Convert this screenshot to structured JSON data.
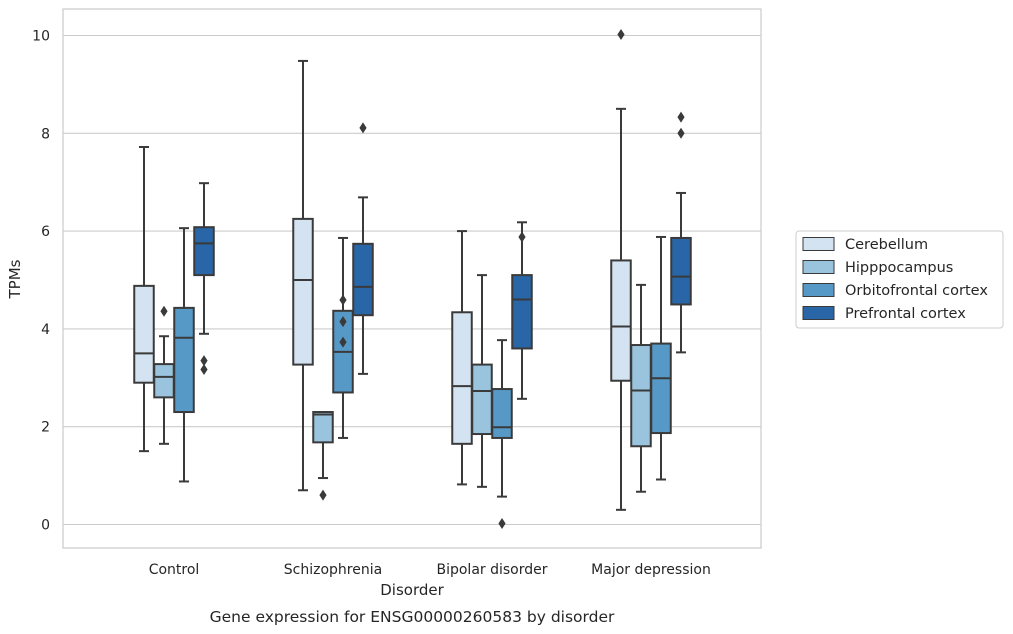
{
  "chart_data": {
    "type": "box",
    "title": "",
    "caption": "Gene expression for ENSG00000260583 by disorder",
    "xlabel": "Disorder",
    "ylabel": "TPMs",
    "ylim": [
      -0.5,
      10.5
    ],
    "yticks": [
      0,
      2,
      4,
      6,
      8,
      10
    ],
    "grid": "horizontal",
    "legend_position": "right",
    "categories": [
      "Control",
      "Schizophrenia",
      "Bipolar disorder",
      "Major depression"
    ],
    "series": [
      {
        "name": "Cerebellum",
        "color": "#d4e3f2",
        "boxes": [
          {
            "whisker_low": 1.5,
            "q1": 2.9,
            "median": 3.5,
            "q3": 4.88,
            "whisker_high": 7.72,
            "outliers": []
          },
          {
            "whisker_low": 0.7,
            "q1": 3.27,
            "median": 5.0,
            "q3": 6.25,
            "whisker_high": 9.48,
            "outliers": []
          },
          {
            "whisker_low": 0.82,
            "q1": 1.65,
            "median": 2.83,
            "q3": 4.34,
            "whisker_high": 6.0,
            "outliers": []
          },
          {
            "whisker_low": 0.3,
            "q1": 2.94,
            "median": 4.05,
            "q3": 5.4,
            "whisker_high": 8.5,
            "outliers": [
              10.02
            ]
          }
        ]
      },
      {
        "name": "Hipppocampus",
        "color": "#9ac4de",
        "boxes": [
          {
            "whisker_low": 1.65,
            "q1": 2.6,
            "median": 3.02,
            "q3": 3.28,
            "whisker_high": 3.85,
            "outliers": [
              4.36
            ]
          },
          {
            "whisker_low": 0.95,
            "q1": 1.68,
            "median": 2.25,
            "q3": 2.3,
            "whisker_high": 2.3,
            "outliers": [
              0.6
            ]
          },
          {
            "whisker_low": 0.77,
            "q1": 1.85,
            "median": 2.73,
            "q3": 3.27,
            "whisker_high": 5.1,
            "outliers": []
          },
          {
            "whisker_low": 0.67,
            "q1": 1.6,
            "median": 2.74,
            "q3": 3.67,
            "whisker_high": 4.9,
            "outliers": []
          }
        ]
      },
      {
        "name": "Orbitofrontal cortex",
        "color": "#5799c6",
        "boxes": [
          {
            "whisker_low": 0.88,
            "q1": 2.3,
            "median": 3.82,
            "q3": 4.43,
            "whisker_high": 6.06,
            "outliers": []
          },
          {
            "whisker_low": 1.77,
            "q1": 2.7,
            "median": 3.53,
            "q3": 4.37,
            "whisker_high": 5.86,
            "outliers": [
              4.59,
              4.15,
              3.73
            ]
          },
          {
            "whisker_low": 0.57,
            "q1": 1.77,
            "median": 1.99,
            "q3": 2.77,
            "whisker_high": 3.77,
            "outliers": [
              0.02
            ]
          },
          {
            "whisker_low": 0.92,
            "q1": 1.87,
            "median": 2.99,
            "q3": 3.7,
            "whisker_high": 5.88,
            "outliers": []
          }
        ]
      },
      {
        "name": "Prefrontal cortex",
        "color": "#2866a8",
        "boxes": [
          {
            "whisker_low": 3.9,
            "q1": 5.1,
            "median": 5.75,
            "q3": 6.08,
            "whisker_high": 6.98,
            "outliers": [
              3.35,
              3.17
            ]
          },
          {
            "whisker_low": 3.08,
            "q1": 4.28,
            "median": 4.86,
            "q3": 5.74,
            "whisker_high": 6.69,
            "outliers": [
              8.11
            ]
          },
          {
            "whisker_low": 2.57,
            "q1": 3.6,
            "median": 4.6,
            "q3": 5.1,
            "whisker_high": 6.18,
            "outliers": [
              5.88
            ]
          },
          {
            "whisker_low": 3.52,
            "q1": 4.5,
            "median": 5.07,
            "q3": 5.86,
            "whisker_high": 6.78,
            "outliers": [
              8.33,
              8.0
            ]
          }
        ]
      }
    ]
  }
}
